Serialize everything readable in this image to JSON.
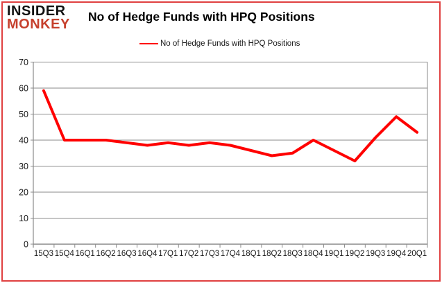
{
  "logo": {
    "line1": "INSIDER",
    "line2": "MONKEY"
  },
  "header": {
    "title": "No of Hedge Funds with HPQ Positions"
  },
  "legend": {
    "label": "No of Hedge Funds with HPQ Positions"
  },
  "colors": {
    "series": "#ff0000",
    "grid": "#8a8a8a",
    "axis": "#8a8a8a",
    "text": "#1a1a1a",
    "logo_accent": "#c6402d",
    "frame_border": "#e04040"
  },
  "chart_data": {
    "type": "line",
    "title": "No of Hedge Funds with HPQ Positions",
    "xlabel": "",
    "ylabel": "",
    "categories": [
      "15Q3",
      "15Q4",
      "16Q1",
      "16Q2",
      "16Q3",
      "16Q4",
      "17Q1",
      "17Q2",
      "17Q3",
      "17Q4",
      "18Q1",
      "18Q2",
      "18Q3",
      "18Q4",
      "19Q1",
      "19Q2",
      "19Q3",
      "19Q4",
      "20Q1"
    ],
    "series": [
      {
        "name": "No of Hedge Funds with HPQ Positions",
        "values": [
          59,
          40,
          40,
          40,
          39,
          38,
          39,
          38,
          39,
          38,
          36,
          34,
          35,
          40,
          36,
          32,
          41,
          49,
          43
        ]
      }
    ],
    "ylim": [
      0,
      70
    ],
    "ytick_step": 10,
    "grid": true,
    "legend_position": "top-center"
  }
}
